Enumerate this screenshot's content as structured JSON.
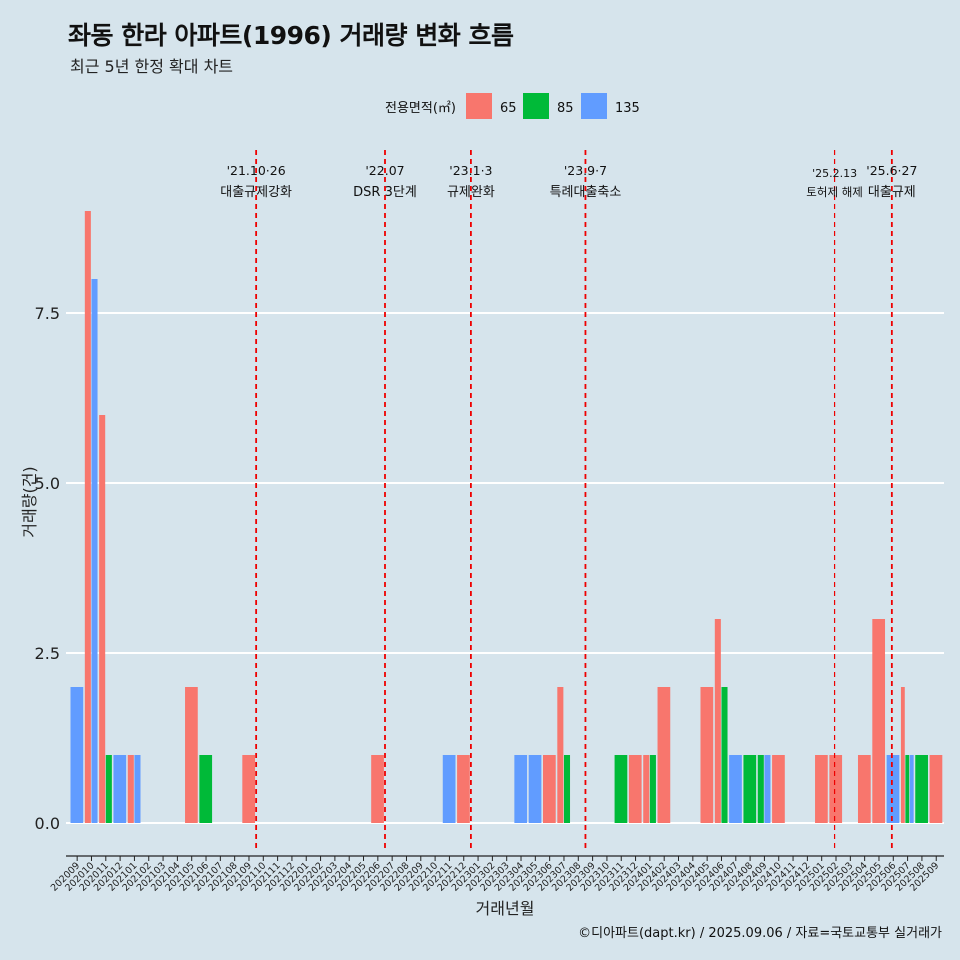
{
  "title": "좌동 한라 아파트(1996) 거래량 변화 흐름",
  "subtitle": "최근 5년 한정 확대 차트",
  "caption": "©디아파트(dapt.kr) / 2025.09.06 / 자료=국토교통부 실거래가",
  "colors": {
    "65": "#f8766d",
    "85": "#00ba38",
    "135": "#619cff",
    "event_line": "#ee0000",
    "background": "#d6e4ec",
    "grid": "#ffffff"
  },
  "chart_data": {
    "type": "bar",
    "xlabel": "거래년월",
    "ylabel": "거래량(건)",
    "ylim": [
      0,
      9
    ],
    "yticks": [
      0.0,
      2.5,
      5.0,
      7.5
    ],
    "ytick_labels": [
      "0.0",
      "2.5",
      "5.0",
      "7.5"
    ],
    "grid": true,
    "legend": {
      "title": "전용면적(㎡)",
      "position": "top",
      "entries": [
        "65",
        "85",
        "135"
      ]
    },
    "categories": [
      "202009",
      "202010",
      "202011",
      "202012",
      "202101",
      "202102",
      "202103",
      "202104",
      "202105",
      "202106",
      "202107",
      "202108",
      "202109",
      "202110",
      "202111",
      "202112",
      "202201",
      "202202",
      "202203",
      "202204",
      "202205",
      "202206",
      "202207",
      "202208",
      "202209",
      "202210",
      "202211",
      "202212",
      "202301",
      "202302",
      "202303",
      "202304",
      "202305",
      "202306",
      "202307",
      "202308",
      "202309",
      "202310",
      "202311",
      "202312",
      "202401",
      "202402",
      "202403",
      "202404",
      "202405",
      "202406",
      "202407",
      "202408",
      "202409",
      "202410",
      "202411",
      "202412",
      "202501",
      "202502",
      "202503",
      "202504",
      "202505",
      "202506",
      "202507",
      "202508",
      "202509"
    ],
    "series": [
      {
        "name": "65",
        "points": [
          [
            "202010",
            9
          ],
          [
            "202011",
            6
          ],
          [
            "202101",
            1
          ],
          [
            "202105",
            2
          ],
          [
            "202109",
            1
          ],
          [
            "202206",
            1
          ],
          [
            "202212",
            1
          ],
          [
            "202306",
            1
          ],
          [
            "202307",
            2
          ],
          [
            "202312",
            1
          ],
          [
            "202401",
            1
          ],
          [
            "202402",
            2
          ],
          [
            "202405",
            2
          ],
          [
            "202406",
            3
          ],
          [
            "202410",
            1
          ],
          [
            "202501",
            1
          ],
          [
            "202502",
            1
          ],
          [
            "202504",
            1
          ],
          [
            "202505",
            3
          ],
          [
            "202507",
            2
          ],
          [
            "202509",
            1
          ]
        ]
      },
      {
        "name": "85",
        "points": [
          [
            "202011",
            1
          ],
          [
            "202106",
            1
          ],
          [
            "202307",
            1
          ],
          [
            "202311",
            1
          ],
          [
            "202401",
            1
          ],
          [
            "202406",
            2
          ],
          [
            "202408",
            1
          ],
          [
            "202409",
            1
          ],
          [
            "202507",
            1
          ],
          [
            "202508",
            1
          ]
        ]
      },
      {
        "name": "135",
        "points": [
          [
            "202009",
            2
          ],
          [
            "202010",
            8
          ],
          [
            "202012",
            1
          ],
          [
            "202101",
            1
          ],
          [
            "202211",
            1
          ],
          [
            "202304",
            1
          ],
          [
            "202305",
            1
          ],
          [
            "202407",
            1
          ],
          [
            "202409",
            1
          ],
          [
            "202506",
            1
          ],
          [
            "202507",
            1
          ]
        ]
      }
    ],
    "annotations": [
      {
        "x": 13.0,
        "line1": "'21.10·26",
        "line2": "대출규제강화",
        "small": false
      },
      {
        "x": 22.0,
        "line1": "'22.07",
        "line2": "DSR 3단계",
        "small": false
      },
      {
        "x": 28.0,
        "line1": "'23.1·3",
        "line2": "규제완화",
        "small": false
      },
      {
        "x": 36.0,
        "line1": "'23.9·7",
        "line2": "특례대출축소",
        "small": false
      },
      {
        "x": 53.4,
        "line1": "'25.2.13",
        "line2": "토허제 해제",
        "small": true
      },
      {
        "x": 57.4,
        "line1": "'25.6·27",
        "line2": "대출규제",
        "small": false
      }
    ]
  }
}
